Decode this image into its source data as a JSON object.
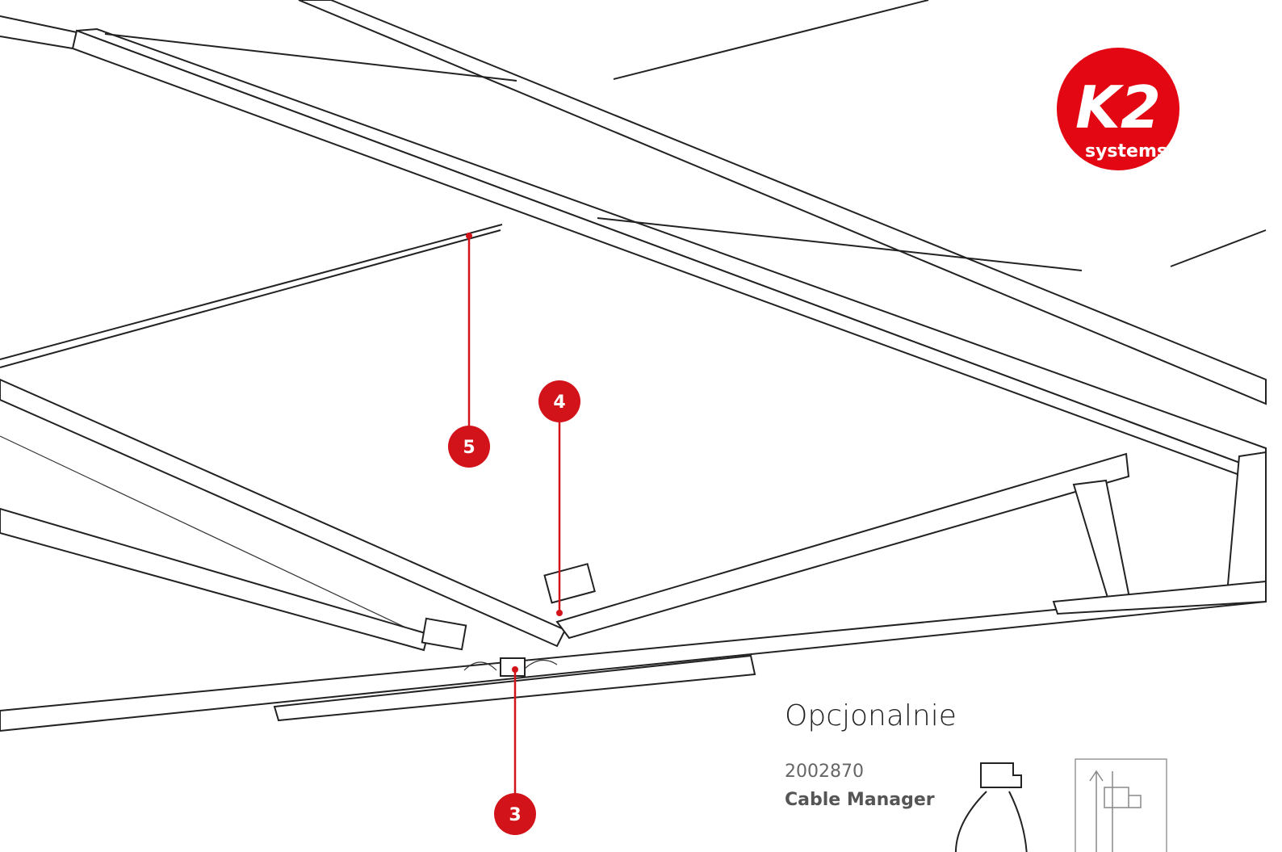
{
  "logo": {
    "mark": "K2",
    "name": "systems"
  },
  "callouts": [
    {
      "label": "5"
    },
    {
      "label": "4"
    },
    {
      "label": "3"
    }
  ],
  "optional": {
    "title": "Opcjonalnie",
    "items": [
      {
        "code": "2002870",
        "name": "Cable Manager"
      }
    ]
  }
}
